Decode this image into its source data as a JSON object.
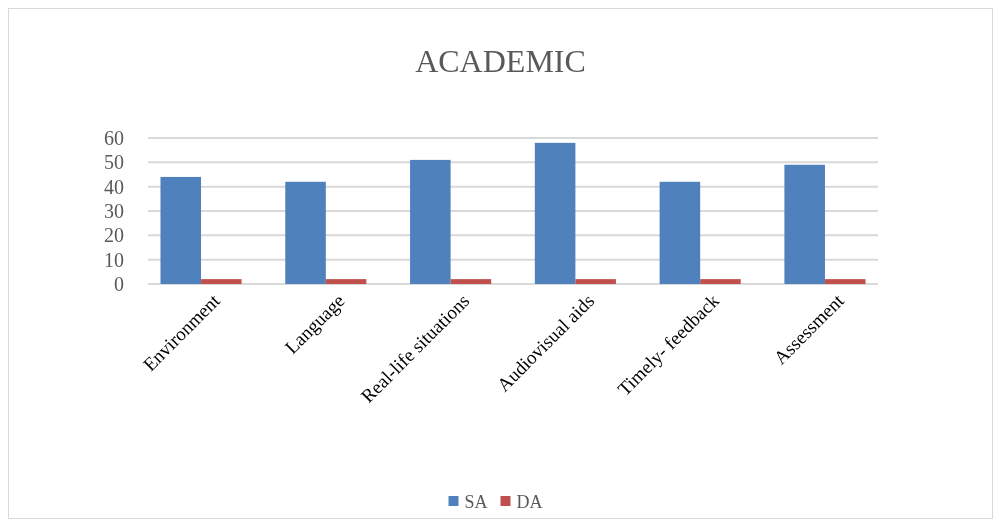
{
  "chart_data": {
    "type": "bar",
    "title": "ACADEMIC",
    "categories": [
      "Environment",
      "Language",
      "Real-life situations",
      "Audiovisual aids",
      "Timely- feedback",
      "Assessment"
    ],
    "series": [
      {
        "name": "SA",
        "color": "#4f81bd",
        "values": [
          44,
          42,
          51,
          58,
          42,
          49
        ]
      },
      {
        "name": "DA",
        "color": "#c0504d",
        "values": [
          2,
          2,
          2,
          2,
          2,
          2
        ]
      }
    ],
    "ylim": [
      0,
      60
    ],
    "yticks": [
      0,
      10,
      20,
      30,
      40,
      50,
      60
    ],
    "grid": "y",
    "legend": "bottom"
  }
}
